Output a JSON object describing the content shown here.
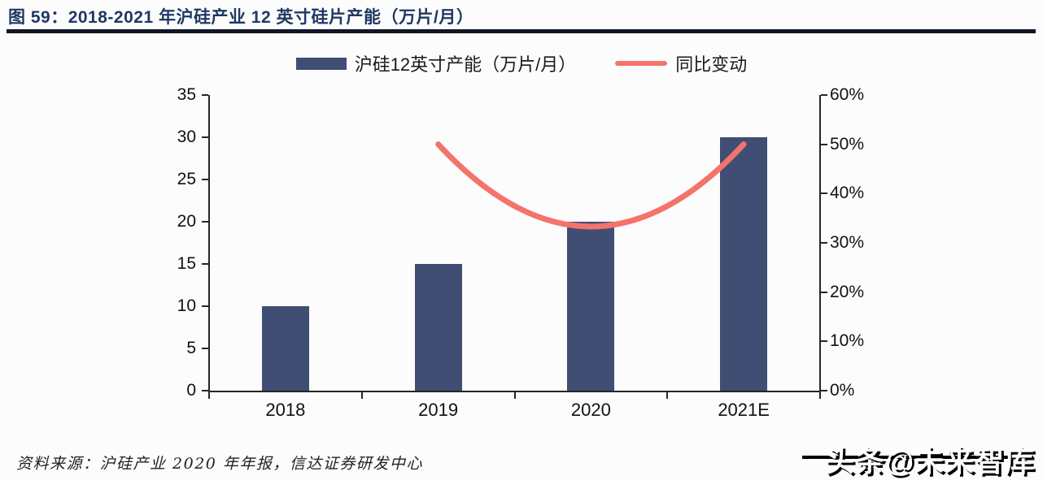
{
  "header": {
    "title": "图 59：2018-2021 年沪硅产业 12 英寸硅片产能（万片/月）"
  },
  "chart_data": {
    "type": "bar",
    "title": "2018-2021 年沪硅产业 12 英寸硅片产能（万片/月）",
    "categories": [
      "2018",
      "2019",
      "2020",
      "2021E"
    ],
    "series": [
      {
        "name": "沪硅12英寸产能（万片/月）",
        "type": "bar",
        "axis": "left",
        "values": [
          10,
          15,
          20,
          30
        ],
        "color": "#3F4E72"
      },
      {
        "name": "同比变动",
        "type": "line",
        "axis": "right",
        "values": [
          null,
          50,
          33.3,
          50
        ],
        "unit": "%",
        "color": "#F4736B"
      }
    ],
    "left_axis": {
      "min": 0,
      "max": 35,
      "step": 5,
      "labels": [
        "0",
        "5",
        "10",
        "15",
        "20",
        "25",
        "30",
        "35"
      ]
    },
    "right_axis": {
      "min": 0,
      "max": 60,
      "step": 10,
      "labels": [
        "0%",
        "10%",
        "20%",
        "30%",
        "40%",
        "50%",
        "60%"
      ]
    },
    "legend_position": "top",
    "grid": false
  },
  "footer": {
    "source": "资料来源：沪硅产业 2020 年年报，信达证券研发中心"
  },
  "watermark": {
    "text": "头条@未来智库"
  },
  "colors": {
    "title": "#1F3864",
    "rule": "#0F1626",
    "bar": "#3F4E72",
    "line": "#F4736B",
    "axis": "#262626",
    "background": "#fcfcfc"
  }
}
